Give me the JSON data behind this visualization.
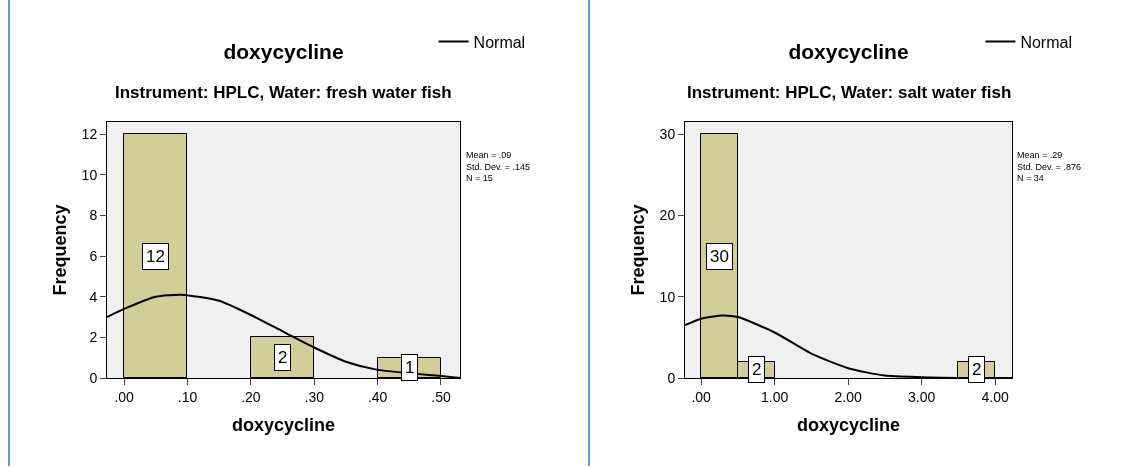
{
  "chart_data": [
    {
      "type": "histogram",
      "title": "doxycycline",
      "subtitle": "Instrument: HPLC, Water: fresh water fish",
      "xlabel": "doxycycline",
      "ylabel": "Frequency",
      "annotations": [
        "Mean = .09\nStd. Dev. = .145\nN = 15"
      ],
      "bins": [
        0,
        0.1,
        0.2,
        0.3,
        0.4,
        0.5
      ],
      "xlim": [
        -0.027,
        0.53
      ],
      "ylim": [
        0,
        12.6
      ],
      "xticks": [
        {
          "value": 0,
          "label": ".00"
        },
        {
          "value": 0.1,
          "label": ".10"
        },
        {
          "value": 0.2,
          "label": ".20"
        },
        {
          "value": 0.3,
          "label": ".30"
        },
        {
          "value": 0.4,
          "label": ".40"
        },
        {
          "value": 0.5,
          "label": ".50"
        }
      ],
      "yticks": [
        0,
        2,
        4,
        6,
        8,
        10,
        12
      ],
      "grid": false,
      "legend": "top right",
      "series": [
        {
          "color": "#d3ce98",
          "values": [
            12,
            0,
            2,
            0,
            1
          ],
          "value_labels": [
            "12",
            null,
            "2",
            null,
            "1"
          ]
        },
        {
          "type": "line",
          "name": "Normal",
          "color": "#000000",
          "x": [
            -0.027,
            0,
            0.05,
            0.09,
            0.15,
            0.2,
            0.25,
            0.3,
            0.35,
            0.4,
            0.5,
            0.53
          ],
          "values": [
            3.0,
            3.4,
            4.0,
            4.1,
            3.8,
            3.1,
            2.3,
            1.5,
            0.8,
            0.4,
            0.1,
            0.0
          ]
        }
      ]
    },
    {
      "type": "histogram",
      "title": "doxycycline",
      "subtitle": "Instrument: HPLC, Water: salt water fish",
      "xlabel": "doxycycline",
      "ylabel": "Frequency",
      "annotations": [
        "Mean = .29\nStd. Dev. = .876\nN = 34"
      ],
      "bins": [
        0,
        0.5,
        1,
        1.5,
        2,
        2.5,
        3,
        3.5,
        4
      ],
      "xlim": [
        -0.22,
        4.23
      ],
      "ylim": [
        0,
        31.5
      ],
      "xticks": [
        {
          "value": 0,
          "label": ".00"
        },
        {
          "value": 1,
          "label": "1.00"
        },
        {
          "value": 2,
          "label": "2.00"
        },
        {
          "value": 3,
          "label": "3.00"
        },
        {
          "value": 4,
          "label": "4.00"
        }
      ],
      "yticks": [
        0,
        10,
        20,
        30
      ],
      "grid": false,
      "legend": "top right",
      "series": [
        {
          "color": "#d3ce98",
          "values": [
            30,
            2,
            0,
            0,
            0,
            0,
            0,
            2
          ],
          "value_labels": [
            "30",
            "2",
            null,
            null,
            null,
            null,
            null,
            "2"
          ]
        },
        {
          "type": "line",
          "name": "Normal",
          "color": "#000000",
          "x": [
            -0.22,
            0,
            0.29,
            0.5,
            1,
            1.5,
            2,
            2.5,
            3,
            3.5,
            4,
            4.23
          ],
          "values": [
            6.5,
            7.3,
            7.7,
            7.5,
            5.6,
            3.0,
            1.2,
            0.3,
            0.1,
            0,
            0,
            0
          ]
        }
      ]
    }
  ]
}
